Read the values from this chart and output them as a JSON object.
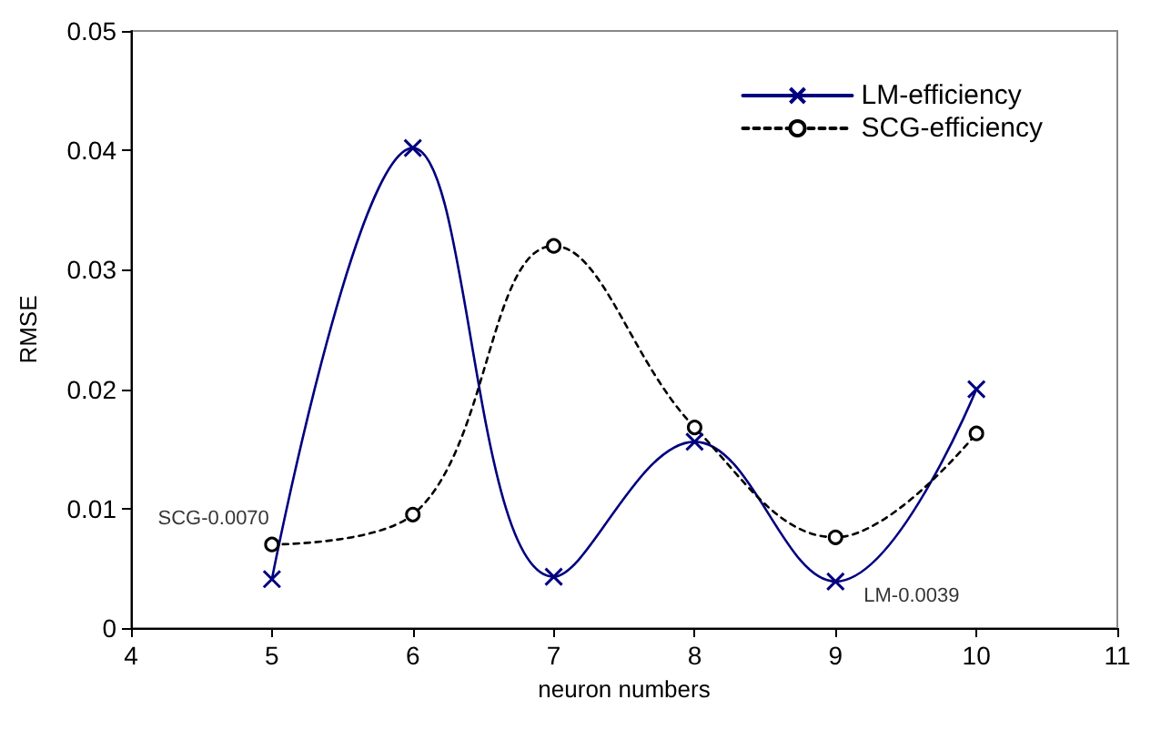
{
  "chart_data": {
    "type": "line",
    "xlabel": "neuron numbers",
    "ylabel": "RMSE",
    "x": [
      5,
      6,
      7,
      8,
      9,
      10
    ],
    "series": [
      {
        "name": "LM-efficiency",
        "color": "#000080",
        "marker": "cross",
        "line_style": "solid",
        "values": [
          0.0041,
          0.0402,
          0.0043,
          0.0156,
          0.0039,
          0.02
        ]
      },
      {
        "name": "SCG-efficiency",
        "color": "#000000",
        "marker": "circle",
        "line_style": "dashed",
        "values": [
          0.007,
          0.0095,
          0.032,
          0.0168,
          0.0076,
          0.0163
        ]
      }
    ],
    "annotations": [
      {
        "text": "SCG-0.0070",
        "x": 5,
        "y": 0.007
      },
      {
        "text": "LM-0.0039",
        "x": 9,
        "y": 0.0039
      }
    ],
    "xlim": [
      4,
      11
    ],
    "xticks": [
      4,
      5,
      6,
      7,
      8,
      9,
      10,
      11
    ],
    "ylim": [
      0,
      0.05
    ],
    "yticks": [
      0,
      0.01,
      0.02,
      0.03,
      0.04,
      0.05
    ],
    "grid": false,
    "legend": "top right"
  }
}
